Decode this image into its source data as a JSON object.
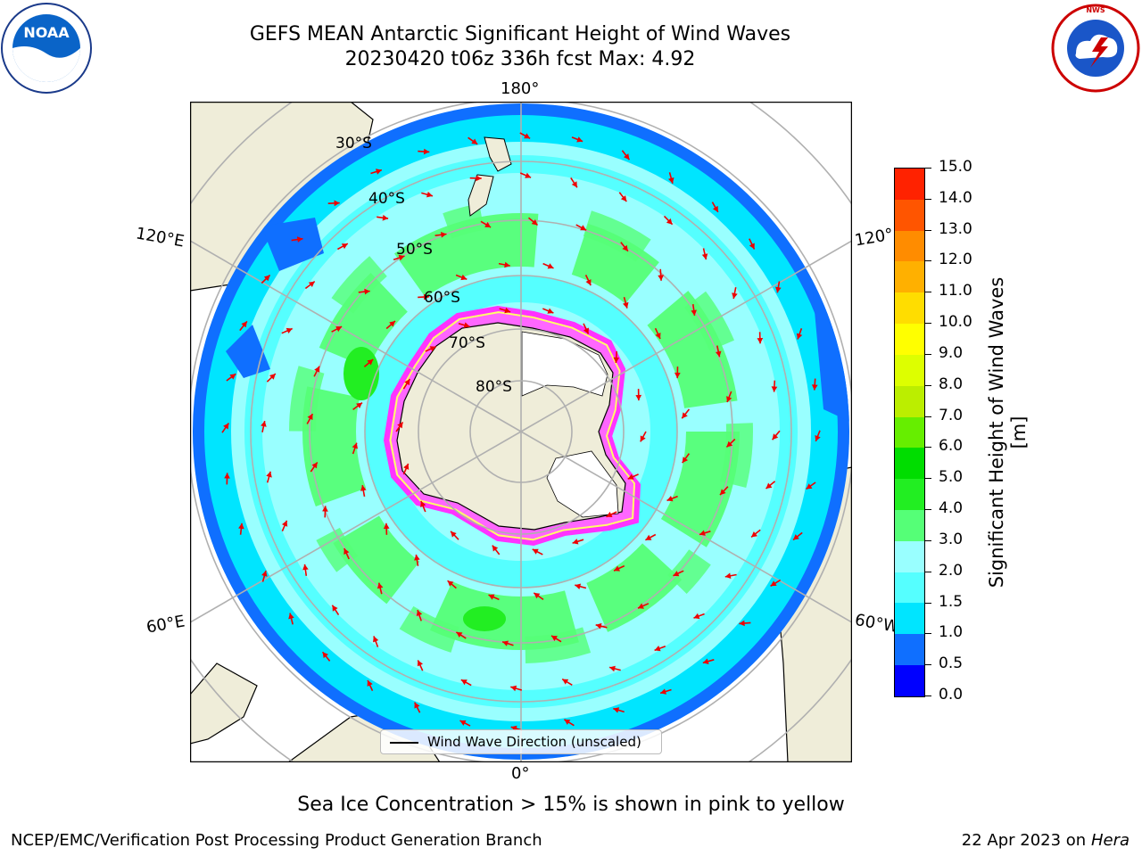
{
  "header": {
    "title_line1": "GEFS MEAN Antarctic Significant Height of Wind Waves",
    "title_line2": "20230420 t06z 336h fcst   Max: 4.92"
  },
  "logos": {
    "left": "noaa-logo",
    "right": "national-weather-service-logo",
    "left_text": "NOAA",
    "right_text": "NATIONAL WEATHER SERVICE"
  },
  "map": {
    "projection": "south-polar-stereographic",
    "longitude_labels": [
      "180°",
      "120°E",
      "120°",
      "60°E",
      "60°W",
      "0°"
    ],
    "latitude_labels": [
      "30°S",
      "40°S",
      "50°S",
      "60°S",
      "70°S",
      "80°S"
    ],
    "max_value": 4.92,
    "arrow_color": "#ee0000",
    "land_color": "#efedd9",
    "ice_colors": [
      "#ff33ff",
      "#ffff66"
    ]
  },
  "legend": {
    "label": "Wind Wave Direction (unscaled)"
  },
  "colorbar": {
    "title": "Significant Height of Wind Waves [m]",
    "ticks": [
      "0.0",
      "0.5",
      "1.0",
      "1.5",
      "2.0",
      "3.0",
      "4.0",
      "5.0",
      "6.0",
      "7.0",
      "8.0",
      "9.0",
      "10.0",
      "11.0",
      "12.0",
      "13.0",
      "14.0",
      "15.0"
    ],
    "colors": [
      "#0000ff",
      "#0f6fff",
      "#00e5ff",
      "#55ffff",
      "#99ffff",
      "#55ff77",
      "#22ee22",
      "#00dd00",
      "#66ee00",
      "#bbee00",
      "#ddff00",
      "#ffff00",
      "#ffdd00",
      "#ffb000",
      "#ff8c00",
      "#ff5500",
      "#ff2200"
    ]
  },
  "footer": {
    "ice_note": "Sea Ice Concentration > 15% is shown in pink to yellow",
    "branch": "NCEP/EMC/Verification Post Processing Product Generation Branch",
    "date_prefix": "22 Apr 2023 on ",
    "host": "Hera"
  }
}
